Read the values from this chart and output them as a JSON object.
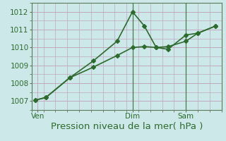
{
  "xlabel": "Pression niveau de la mer( hPa )",
  "bg_color": "#cce8e8",
  "grid_color": "#c0a8c0",
  "line_color": "#2d6a2d",
  "xtick_labels": [
    "Ven",
    "Dim",
    "Sam"
  ],
  "xtick_positions": [
    0.5,
    8.5,
    13.0
  ],
  "ytick_values": [
    1007,
    1008,
    1009,
    1010,
    1011,
    1012
  ],
  "ylim": [
    1006.5,
    1012.5
  ],
  "xlim": [
    0,
    16
  ],
  "line1_x": [
    0.3,
    1.2,
    3.2,
    5.2,
    7.2,
    8.5,
    9.5,
    10.5,
    11.5,
    13.0,
    14.0,
    15.5
  ],
  "line1_y": [
    1007.05,
    1007.2,
    1008.3,
    1009.25,
    1010.35,
    1012.0,
    1011.2,
    1010.0,
    1009.9,
    1010.7,
    1010.8,
    1011.2
  ],
  "line2_x": [
    0.3,
    1.2,
    3.2,
    5.2,
    7.2,
    8.5,
    9.5,
    10.5,
    11.5,
    13.0,
    14.0,
    15.5
  ],
  "line2_y": [
    1007.05,
    1007.2,
    1008.3,
    1008.9,
    1009.55,
    1010.0,
    1010.05,
    1010.0,
    1010.05,
    1010.35,
    1010.8,
    1011.2
  ],
  "vline_positions": [
    8.5,
    13.0
  ],
  "marker": "D",
  "markersize": 3.0,
  "linewidth": 1.2,
  "tick_fontsize": 7.5,
  "xlabel_fontsize": 9.5,
  "tick_color": "#2d6a2d",
  "label_color": "#2d6a2d"
}
